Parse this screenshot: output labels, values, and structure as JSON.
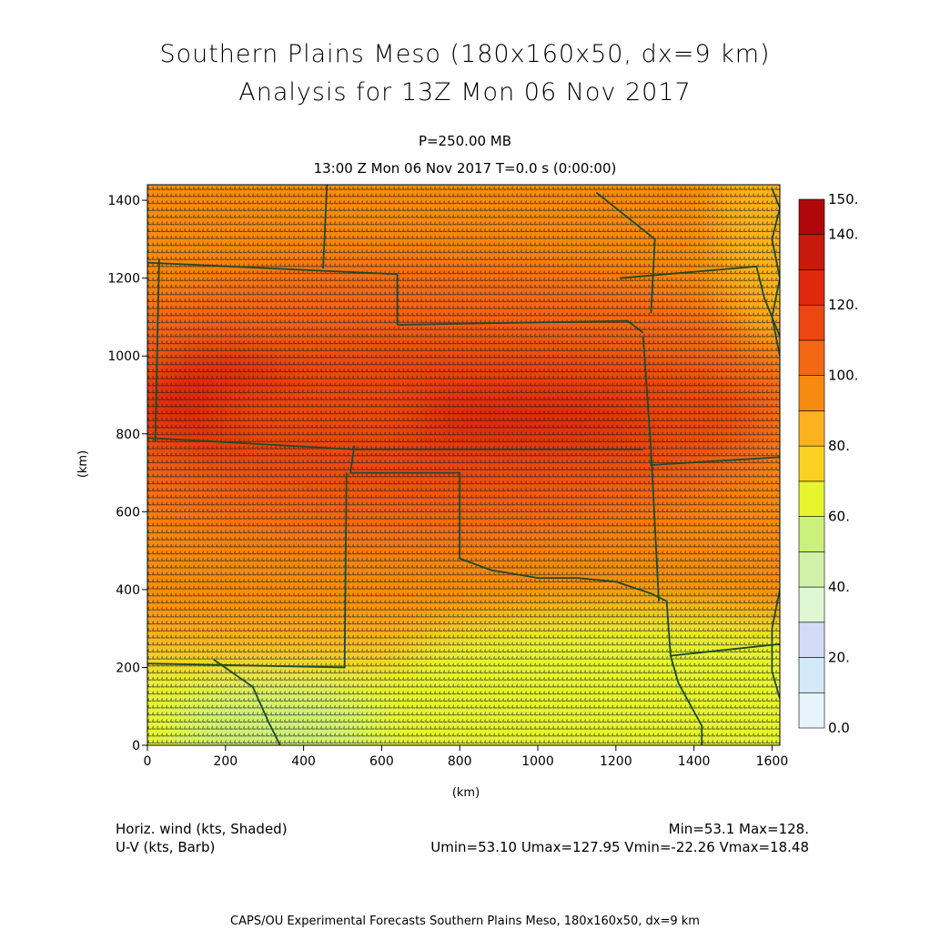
{
  "title_line1": "Southern Plains Meso (180x160x50, dx=9 km)",
  "title_line2": "Analysis for 13Z Mon 06 Nov 2017",
  "level_label": "P=250.00 MB",
  "time_label": "13:00 Z Mon 06 Nov 2017    T=0.0 s (0:00:00)",
  "footer": {
    "field_label": "Horiz. wind (kts, Shaded)",
    "vector_label": "U-V (kts, Barb)",
    "minmax": "Min=53.1 Max=128.",
    "uv_stats": "Umin=53.10 Umax=127.95 Vmin=-22.26 Vmax=18.48"
  },
  "credit": "CAPS/OU Experimental Forecasts  Southern Plains Meso, 180x160x50, dx=9 km",
  "chart_data": {
    "type": "heatmap",
    "xlabel": "(km)",
    "ylabel": "(km)",
    "xlim": [
      0,
      1620
    ],
    "ylim": [
      0,
      1440
    ],
    "x_ticks": [
      "0",
      "200",
      "400",
      "600",
      "800",
      "1000",
      "1200",
      "1400",
      "1600"
    ],
    "y_ticks": [
      "0",
      "200",
      "400",
      "600",
      "800",
      "1000",
      "1200",
      "1400"
    ],
    "colorbar": {
      "labels": [
        "0.0",
        "20.",
        "40.",
        "60.",
        "80.",
        "100.",
        "120.",
        "140.",
        "150."
      ],
      "bins": [
        {
          "from": 0,
          "to": 10,
          "color": "#e8f4fb"
        },
        {
          "from": 10,
          "to": 20,
          "color": "#d4e9f7"
        },
        {
          "from": 20,
          "to": 30,
          "color": "#d3dcf5"
        },
        {
          "from": 30,
          "to": 40,
          "color": "#dff7d3"
        },
        {
          "from": 40,
          "to": 50,
          "color": "#d2f2a9"
        },
        {
          "from": 50,
          "to": 60,
          "color": "#ccf07c"
        },
        {
          "from": 60,
          "to": 70,
          "color": "#e6f52e"
        },
        {
          "from": 70,
          "to": 80,
          "color": "#fcd222"
        },
        {
          "from": 80,
          "to": 90,
          "color": "#fcb21e"
        },
        {
          "from": 90,
          "to": 100,
          "color": "#f78a10"
        },
        {
          "from": 100,
          "to": 110,
          "color": "#f26814"
        },
        {
          "from": 110,
          "to": 120,
          "color": "#ec4710"
        },
        {
          "from": 120,
          "to": 130,
          "color": "#e0280c"
        },
        {
          "from": 130,
          "to": 140,
          "color": "#c81a0c"
        },
        {
          "from": 140,
          "to": 150,
          "color": "#b0080a"
        }
      ]
    },
    "field_range": {
      "min": 53.1,
      "max": 128
    },
    "wind_extrema": {
      "umin": 53.1,
      "umax": 127.95,
      "vmin": -22.26,
      "vmax": 18.48
    }
  },
  "map_color": "#1f4a2c",
  "barb_color": "#1a1a1a"
}
